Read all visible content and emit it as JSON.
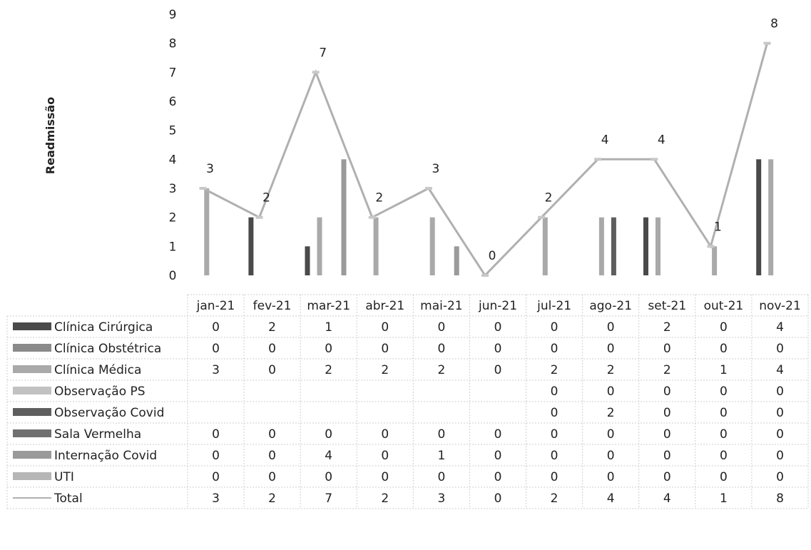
{
  "chart_data": {
    "type": "bar",
    "ylabel": "Readmissão",
    "ylim": [
      0,
      9
    ],
    "yticks": [
      0,
      1,
      2,
      3,
      4,
      5,
      6,
      7,
      8,
      9
    ],
    "categories": [
      "jan-21",
      "fev-21",
      "mar-21",
      "abr-21",
      "mai-21",
      "jun-21",
      "jul-21",
      "ago-21",
      "set-21",
      "out-21",
      "nov-21"
    ],
    "series": [
      {
        "name": "Clínica Cirúrgica",
        "kind": "bar",
        "color": "#4a4a4a",
        "values": [
          0,
          2,
          1,
          0,
          0,
          0,
          0,
          0,
          2,
          0,
          4
        ]
      },
      {
        "name": "Clínica Obstétrica",
        "kind": "bar",
        "color": "#8a8a8a",
        "values": [
          0,
          0,
          0,
          0,
          0,
          0,
          0,
          0,
          0,
          0,
          0
        ]
      },
      {
        "name": "Clínica Médica",
        "kind": "bar",
        "color": "#a9a9a9",
        "values": [
          3,
          0,
          2,
          2,
          2,
          0,
          2,
          2,
          2,
          1,
          4
        ]
      },
      {
        "name": "Observação PS",
        "kind": "bar",
        "color": "#c2c2c2",
        "values": [
          null,
          null,
          null,
          null,
          null,
          null,
          0,
          0,
          0,
          0,
          0
        ]
      },
      {
        "name": "Observação Covid",
        "kind": "bar",
        "color": "#5e5e5e",
        "values": [
          null,
          null,
          null,
          null,
          null,
          null,
          0,
          2,
          0,
          0,
          0
        ]
      },
      {
        "name": "Sala Vermelha",
        "kind": "bar",
        "color": "#707070",
        "values": [
          0,
          0,
          0,
          0,
          0,
          0,
          0,
          0,
          0,
          0,
          0
        ]
      },
      {
        "name": "Internação Covid",
        "kind": "bar",
        "color": "#9a9a9a",
        "values": [
          0,
          0,
          4,
          0,
          1,
          0,
          0,
          0,
          0,
          0,
          0
        ]
      },
      {
        "name": "UTI",
        "kind": "bar",
        "color": "#b6b6b6",
        "values": [
          0,
          0,
          0,
          0,
          0,
          0,
          0,
          0,
          0,
          0,
          0
        ]
      },
      {
        "name": "Total",
        "kind": "line",
        "color": "#b0b0b0",
        "values": [
          3,
          2,
          7,
          2,
          3,
          0,
          2,
          4,
          4,
          1,
          8
        ]
      }
    ],
    "legend": "data-table",
    "grid": false
  }
}
